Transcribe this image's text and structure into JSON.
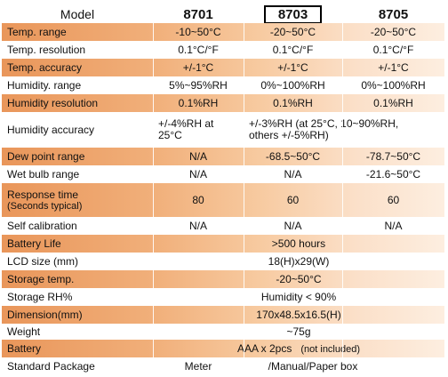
{
  "header": {
    "model_label": "Model",
    "m1": "8701",
    "m2": "8703",
    "m3": "8705"
  },
  "rows": [
    {
      "label": "Temp. range",
      "v": [
        "-10~50°C",
        "-20~50°C",
        "-20~50°C"
      ]
    },
    {
      "label": "Temp. resolution",
      "v": [
        "0.1°C/°F",
        "0.1°C/°F",
        "0.1°C/°F"
      ]
    },
    {
      "label": "Temp. accuracy",
      "v": [
        "+/-1°C",
        "+/-1°C",
        "+/-1°C"
      ]
    },
    {
      "label": "Humidity. range",
      "v": [
        "5%~95%RH",
        "0%~100%RH",
        "0%~100%RH"
      ]
    },
    {
      "label": "Humidity resolution",
      "v": [
        "0.1%RH",
        "0.1%RH",
        "0.1%RH"
      ]
    },
    {
      "label": "Humidity accuracy",
      "v1a": "+/-4%RH at",
      "v1b": "25°C",
      "v23a": "+/-3%RH (at 25°C, 10~90%RH,",
      "v23b": "others +/-5%RH)"
    },
    {
      "label": "Dew point range",
      "v": [
        "N/A",
        "-68.5~50°C",
        "-78.7~50°C"
      ]
    },
    {
      "label": "Wet bulb range",
      "v": [
        "N/A",
        "N/A",
        "-21.6~50°C"
      ]
    },
    {
      "label_a": "Response time",
      "label_b": "(Seconds typical)",
      "v": [
        "80",
        "60",
        "60"
      ]
    },
    {
      "label": "Self calibration",
      "v": [
        "N/A",
        "N/A",
        "N/A"
      ]
    },
    {
      "label": "Battery Life",
      "span": ">500 hours"
    },
    {
      "label": "LCD size (mm)",
      "span": "18(H)x29(W)"
    },
    {
      "label": "Storage temp.",
      "span": "-20~50°C"
    },
    {
      "label": "Storage RH%",
      "span": "Humidity < 90%"
    },
    {
      "label": "Dimension(mm)",
      "span": "170x48.5x16.5(H)"
    },
    {
      "label": "Weight",
      "span": "~75g"
    },
    {
      "label": "Battery",
      "span": "AAA x 2pcs",
      "note": "(not included)"
    },
    {
      "label": "Standard Package",
      "span_a": "Meter",
      "span_b": "/Manual/Paper box"
    }
  ]
}
